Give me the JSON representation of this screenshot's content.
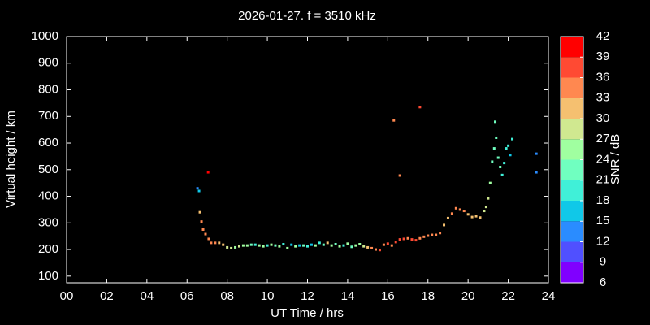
{
  "chart_data": {
    "type": "scatter",
    "title": "2026-01-27. f = 3510 kHz",
    "x_label": "UT Time / hrs",
    "y_label": "Virtual height / km",
    "xlim": [
      0,
      24
    ],
    "ylim": [
      75,
      1000
    ],
    "xticks": [
      {
        "value": 0,
        "label": "00"
      },
      {
        "value": 2,
        "label": "02"
      },
      {
        "value": 4,
        "label": "04"
      },
      {
        "value": 6,
        "label": "06"
      },
      {
        "value": 8,
        "label": "08"
      },
      10,
      12,
      14,
      16,
      18,
      20,
      22,
      24
    ],
    "yticks": [
      100,
      200,
      300,
      400,
      500,
      600,
      700,
      800,
      900,
      1000
    ],
    "colorbar": {
      "label": "SNR / dB",
      "lim": [
        6,
        42
      ],
      "ticks": [
        6,
        9,
        12,
        15,
        18,
        21,
        24,
        27,
        30,
        33,
        36,
        39,
        42
      ],
      "colors": [
        "#8000ff",
        "#5050ff",
        "#2a8cff",
        "#10c8e8",
        "#40f0d8",
        "#70ffc0",
        "#a0ffa0",
        "#d0e890",
        "#f5c070",
        "#ff8850",
        "#ff4a33",
        "#ff0000"
      ]
    },
    "x": [
      6.52,
      6.6,
      6.64,
      6.72,
      6.8,
      6.92,
      7.05,
      7.08,
      7.2,
      7.4,
      7.6,
      7.8,
      8.0,
      8.2,
      8.4,
      8.6,
      8.8,
      9.0,
      9.2,
      9.4,
      9.6,
      9.8,
      10.0,
      10.2,
      10.4,
      10.6,
      10.8,
      11.0,
      11.2,
      11.4,
      11.6,
      11.8,
      12.0,
      12.2,
      12.4,
      12.6,
      12.8,
      13.0,
      13.2,
      13.4,
      13.6,
      13.8,
      14.0,
      14.2,
      14.4,
      14.6,
      14.8,
      15.0,
      15.2,
      15.4,
      15.6,
      15.8,
      16.0,
      16.2,
      16.4,
      16.6,
      16.8,
      17.0,
      17.2,
      17.4,
      17.6,
      17.8,
      18.0,
      18.2,
      18.4,
      18.6,
      18.8,
      19.0,
      19.2,
      19.4,
      19.6,
      19.8,
      20.0,
      20.2,
      20.4,
      20.6,
      20.8,
      20.9,
      21.0,
      21.1,
      16.3,
      16.6,
      17.6,
      21.2,
      21.3,
      21.35,
      21.4,
      21.5,
      21.6,
      21.7,
      21.8,
      21.9,
      22.0,
      22.1,
      22.2,
      23.4,
      23.4
    ],
    "y": [
      430,
      420,
      340,
      305,
      275,
      258,
      490,
      240,
      225,
      225,
      225,
      218,
      208,
      205,
      208,
      212,
      215,
      215,
      218,
      218,
      215,
      212,
      215,
      218,
      215,
      212,
      220,
      205,
      218,
      212,
      215,
      215,
      212,
      218,
      215,
      225,
      218,
      225,
      215,
      220,
      212,
      215,
      222,
      210,
      215,
      220,
      212,
      208,
      205,
      200,
      198,
      218,
      222,
      215,
      228,
      238,
      240,
      242,
      238,
      235,
      242,
      248,
      252,
      255,
      255,
      262,
      292,
      318,
      335,
      355,
      350,
      345,
      332,
      322,
      325,
      320,
      345,
      360,
      392,
      450,
      685,
      478,
      735,
      530,
      580,
      680,
      620,
      545,
      510,
      480,
      525,
      580,
      590,
      555,
      615,
      560,
      490
    ],
    "snr": [
      12,
      15,
      30,
      33,
      33,
      33,
      39,
      33,
      33,
      33,
      30,
      30,
      27,
      27,
      24,
      27,
      24,
      24,
      21,
      18,
      24,
      24,
      18,
      24,
      21,
      24,
      18,
      24,
      15,
      24,
      15,
      21,
      18,
      15,
      24,
      18,
      21,
      30,
      24,
      21,
      24,
      18,
      24,
      21,
      24,
      24,
      27,
      30,
      33,
      33,
      36,
      33,
      36,
      33,
      36,
      36,
      36,
      33,
      36,
      36,
      33,
      33,
      33,
      33,
      33,
      33,
      30,
      30,
      33,
      33,
      33,
      33,
      30,
      30,
      30,
      30,
      27,
      27,
      27,
      24,
      33,
      33,
      36,
      21,
      21,
      21,
      21,
      21,
      21,
      18,
      18,
      18,
      18,
      15,
      18,
      12,
      12
    ]
  }
}
